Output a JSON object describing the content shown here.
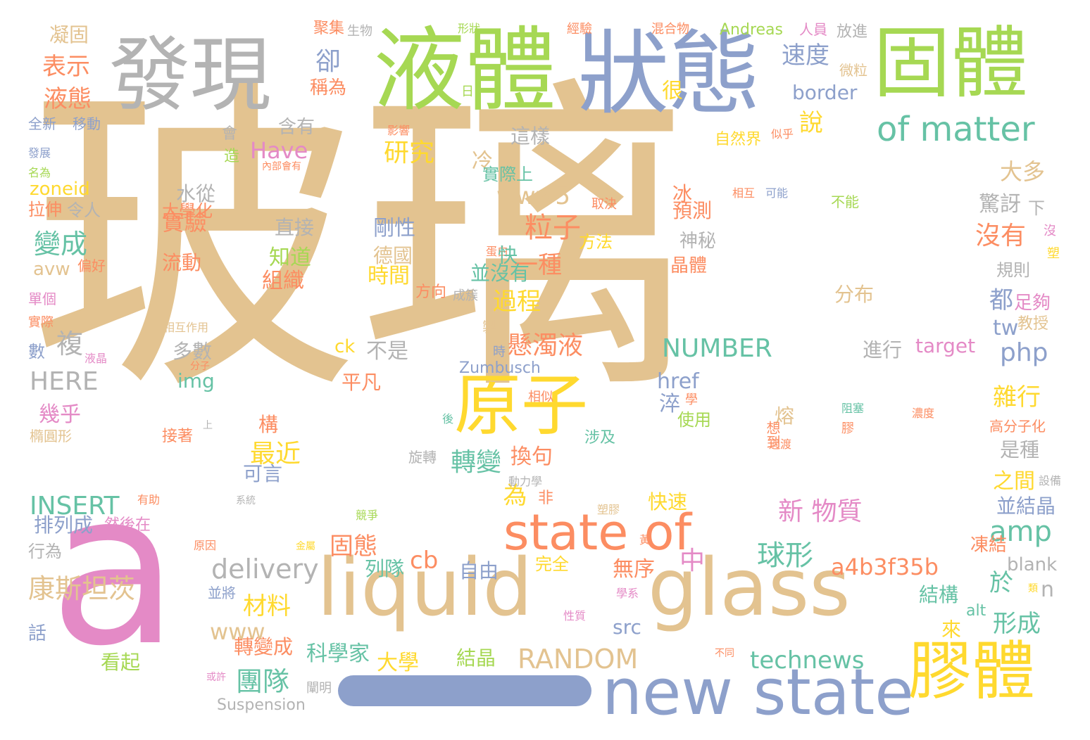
{
  "palette": {
    "tan": "#e3c390",
    "pink": "#e48ac6",
    "green": "#a6d853",
    "blue": "#8da0cb",
    "gray": "#b3b3b3",
    "yellow": "#ffd92f",
    "orange": "#fc8d62",
    "teal": "#66c2a5"
  },
  "underscore_color": "#8da0cb",
  "words": [
    {
      "t": "玻璃",
      "c": "tan"
    },
    {
      "t": "a",
      "c": "pink"
    },
    {
      "t": "液體",
      "c": "green"
    },
    {
      "t": "狀態",
      "c": "blue"
    },
    {
      "t": "固體",
      "c": "green"
    },
    {
      "t": "發現",
      "c": "gray"
    },
    {
      "t": "liquid",
      "c": "tan"
    },
    {
      "t": "glass",
      "c": "tan"
    },
    {
      "t": "new state",
      "c": "blue"
    },
    {
      "t": "膠體",
      "c": "yellow"
    },
    {
      "t": "原子",
      "c": "yellow"
    },
    {
      "t": "state of",
      "c": "orange"
    },
    {
      "t": "of matter",
      "c": "teal"
    },
    {
      "t": "表示",
      "c": "orange"
    },
    {
      "t": "液態",
      "c": "orange"
    },
    {
      "t": "凝固",
      "c": "tan"
    },
    {
      "t": "卻",
      "c": "blue"
    },
    {
      "t": "速度",
      "c": "blue"
    },
    {
      "t": "border",
      "c": "blue"
    },
    {
      "t": "Andreas",
      "c": "green"
    },
    {
      "t": "研究",
      "c": "yellow"
    },
    {
      "t": "說",
      "c": "yellow"
    },
    {
      "t": "Have",
      "c": "pink"
    },
    {
      "t": "冷",
      "c": "tan"
    },
    {
      "t": "這樣",
      "c": "gray"
    },
    {
      "t": "大多",
      "c": "tan"
    },
    {
      "t": "www5",
      "c": "tan"
    },
    {
      "t": "粒子",
      "c": "orange"
    },
    {
      "t": "實驗",
      "c": "orange"
    },
    {
      "t": "變成",
      "c": "teal"
    },
    {
      "t": "zoneid",
      "c": "yellow"
    },
    {
      "t": "沒有",
      "c": "orange"
    },
    {
      "t": "驚訝",
      "c": "gray"
    },
    {
      "t": "剛性",
      "c": "blue"
    },
    {
      "t": "一種",
      "c": "orange"
    },
    {
      "t": "過程",
      "c": "yellow"
    },
    {
      "t": "懸濁液",
      "c": "orange"
    },
    {
      "t": "NUMBER",
      "c": "teal"
    },
    {
      "t": "都",
      "c": "blue"
    },
    {
      "t": "tw",
      "c": "blue"
    },
    {
      "t": "php",
      "c": "blue"
    },
    {
      "t": "HERE",
      "c": "gray"
    },
    {
      "t": "複",
      "c": "gray"
    },
    {
      "t": "雜行",
      "c": "yellow"
    },
    {
      "t": "轉變",
      "c": "teal"
    },
    {
      "t": "換句",
      "c": "orange"
    },
    {
      "t": "最近",
      "c": "yellow"
    },
    {
      "t": "INSERT",
      "c": "teal"
    },
    {
      "t": "新 物質",
      "c": "pink"
    },
    {
      "t": "球形",
      "c": "teal"
    },
    {
      "t": "amp",
      "c": "teal"
    },
    {
      "t": "delivery",
      "c": "gray"
    },
    {
      "t": "康斯坦茨",
      "c": "tan"
    },
    {
      "t": "固態",
      "c": "orange"
    },
    {
      "t": "a4b3f35b",
      "c": "orange"
    },
    {
      "t": "於",
      "c": "teal"
    },
    {
      "t": "形成",
      "c": "teal"
    },
    {
      "t": "材料",
      "c": "yellow"
    },
    {
      "t": "www",
      "c": "tan"
    },
    {
      "t": "RANDOM",
      "c": "tan"
    },
    {
      "t": "technews",
      "c": "teal"
    },
    {
      "t": "團隊",
      "c": "teal"
    },
    {
      "t": "Suspension",
      "c": "gray"
    },
    {
      "t": "看起",
      "c": "green"
    },
    {
      "t": "大學",
      "c": "yellow"
    },
    {
      "t": "結晶",
      "c": "green"
    },
    {
      "t": "科學家",
      "c": "teal"
    },
    {
      "t": "轉變成",
      "c": "orange"
    },
    {
      "t": "ck",
      "c": "yellow"
    },
    {
      "t": "不是",
      "c": "gray"
    },
    {
      "t": "平凡",
      "c": "orange"
    },
    {
      "t": "Zumbusch",
      "c": "blue"
    },
    {
      "t": "target",
      "c": "pink"
    },
    {
      "t": "進行",
      "c": "gray"
    },
    {
      "t": "href",
      "c": "blue"
    },
    {
      "t": "img",
      "c": "teal"
    },
    {
      "t": "為",
      "c": "yellow"
    },
    {
      "t": "中",
      "c": "pink"
    },
    {
      "t": "cb",
      "c": "orange"
    },
    {
      "t": "時間",
      "c": "yellow"
    },
    {
      "t": "組織",
      "c": "orange"
    },
    {
      "t": "知道",
      "c": "green"
    },
    {
      "t": "德國",
      "c": "tan"
    },
    {
      "t": "直接",
      "c": "gray"
    },
    {
      "t": "流動",
      "c": "orange"
    },
    {
      "t": "avw",
      "c": "tan"
    },
    {
      "t": "令人",
      "c": "gray"
    },
    {
      "t": "水從",
      "c": "gray"
    },
    {
      "t": "拉伸",
      "c": "orange"
    },
    {
      "t": "全新",
      "c": "blue"
    },
    {
      "t": "移動",
      "c": "blue"
    },
    {
      "t": "含有",
      "c": "gray"
    },
    {
      "t": "會",
      "c": "gray"
    },
    {
      "t": "造",
      "c": "green"
    },
    {
      "t": "稱為",
      "c": "orange"
    },
    {
      "t": "很",
      "c": "yellow"
    },
    {
      "t": "微粒",
      "c": "tan"
    },
    {
      "t": "人員",
      "c": "pink"
    },
    {
      "t": "放進",
      "c": "gray"
    },
    {
      "t": "聚集",
      "c": "orange"
    },
    {
      "t": "生物",
      "c": "gray"
    },
    {
      "t": "形狀",
      "c": "green"
    },
    {
      "t": "經驗",
      "c": "orange"
    },
    {
      "t": "混合物",
      "c": "orange"
    },
    {
      "t": "日",
      "c": "green"
    },
    {
      "t": "影響",
      "c": "orange"
    },
    {
      "t": "自然界",
      "c": "yellow"
    },
    {
      "t": "似乎",
      "c": "orange"
    },
    {
      "t": "實際上",
      "c": "teal"
    },
    {
      "t": "內部會有",
      "c": "orange"
    },
    {
      "t": "冰",
      "c": "orange"
    },
    {
      "t": "預測",
      "c": "orange"
    },
    {
      "t": "取決",
      "c": "orange"
    },
    {
      "t": "相互",
      "c": "orange"
    },
    {
      "t": "可能",
      "c": "blue"
    },
    {
      "t": "不能",
      "c": "green"
    },
    {
      "t": "下",
      "c": "gray"
    },
    {
      "t": "沒",
      "c": "pink"
    },
    {
      "t": "塑",
      "c": "yellow"
    },
    {
      "t": "神秘",
      "c": "gray"
    },
    {
      "t": "晶體",
      "c": "orange"
    },
    {
      "t": "規則",
      "c": "gray"
    },
    {
      "t": "足夠",
      "c": "pink"
    },
    {
      "t": "教授",
      "c": "tan"
    },
    {
      "t": "分布",
      "c": "tan"
    },
    {
      "t": "大學化",
      "c": "orange"
    },
    {
      "t": "方法",
      "c": "yellow"
    },
    {
      "t": "蛋白",
      "c": "orange"
    },
    {
      "t": "快",
      "c": "teal"
    },
    {
      "t": "並沒有",
      "c": "teal"
    },
    {
      "t": "方向",
      "c": "orange"
    },
    {
      "t": "成簇",
      "c": "gray"
    },
    {
      "t": "偏好",
      "c": "orange"
    },
    {
      "t": "單個",
      "c": "pink"
    },
    {
      "t": "實際",
      "c": "orange"
    },
    {
      "t": "數",
      "c": "blue"
    },
    {
      "t": "相互作用",
      "c": "tan"
    },
    {
      "t": "液晶",
      "c": "pink"
    },
    {
      "t": "分子",
      "c": "orange"
    },
    {
      "t": "多數",
      "c": "gray"
    },
    {
      "t": "製",
      "c": "tan"
    },
    {
      "t": "時",
      "c": "blue"
    },
    {
      "t": "淬",
      "c": "blue"
    },
    {
      "t": "學",
      "c": "orange"
    },
    {
      "t": "熔",
      "c": "tan"
    },
    {
      "t": "使用",
      "c": "green"
    },
    {
      "t": "阻塞",
      "c": "teal"
    },
    {
      "t": "膠",
      "c": "orange"
    },
    {
      "t": "濃度",
      "c": "orange"
    },
    {
      "t": "高分子化",
      "c": "orange"
    },
    {
      "t": "是種",
      "c": "gray"
    },
    {
      "t": "之間",
      "c": "yellow"
    },
    {
      "t": "設備",
      "c": "gray"
    },
    {
      "t": "並結晶",
      "c": "blue"
    },
    {
      "t": "凍結",
      "c": "orange"
    },
    {
      "t": "blank",
      "c": "gray"
    },
    {
      "t": "n",
      "c": "gray"
    },
    {
      "t": "結構",
      "c": "teal"
    },
    {
      "t": "類",
      "c": "yellow"
    },
    {
      "t": "來",
      "c": "yellow"
    },
    {
      "t": "alt",
      "c": "teal"
    },
    {
      "t": "發展",
      "c": "blue"
    },
    {
      "t": "名為",
      "c": "green"
    },
    {
      "t": "幾乎",
      "c": "pink"
    },
    {
      "t": "橢圓形",
      "c": "tan"
    },
    {
      "t": "接著",
      "c": "orange"
    },
    {
      "t": "上",
      "c": "gray"
    },
    {
      "t": "構",
      "c": "orange"
    },
    {
      "t": "可言",
      "c": "blue"
    },
    {
      "t": "相似",
      "c": "orange"
    },
    {
      "t": "後",
      "c": "teal"
    },
    {
      "t": "涉及",
      "c": "teal"
    },
    {
      "t": "旋轉",
      "c": "gray"
    },
    {
      "t": "動力學",
      "c": "gray"
    },
    {
      "t": "想到",
      "c": "orange"
    },
    {
      "t": "過渡",
      "c": "orange"
    },
    {
      "t": "有助",
      "c": "orange"
    },
    {
      "t": "系統",
      "c": "gray"
    },
    {
      "t": "排列成",
      "c": "blue"
    },
    {
      "t": "然後在",
      "c": "pink"
    },
    {
      "t": "非",
      "c": "orange"
    },
    {
      "t": "塑膠",
      "c": "tan"
    },
    {
      "t": "快速",
      "c": "yellow"
    },
    {
      "t": "競爭",
      "c": "green"
    },
    {
      "t": "原因",
      "c": "orange"
    },
    {
      "t": "行為",
      "c": "gray"
    },
    {
      "t": "金屬",
      "c": "yellow"
    },
    {
      "t": "列隊",
      "c": "teal"
    },
    {
      "t": "完全",
      "c": "yellow"
    },
    {
      "t": "自由",
      "c": "blue"
    },
    {
      "t": "無序",
      "c": "orange"
    },
    {
      "t": "黃",
      "c": "orange"
    },
    {
      "t": "學系",
      "c": "pink"
    },
    {
      "t": "並將",
      "c": "blue"
    },
    {
      "t": "性質",
      "c": "pink"
    },
    {
      "t": "src",
      "c": "blue"
    },
    {
      "t": "話",
      "c": "blue"
    },
    {
      "t": "或許",
      "c": "pink"
    },
    {
      "t": "闡明",
      "c": "gray"
    },
    {
      "t": "不同",
      "c": "orange"
    }
  ]
}
